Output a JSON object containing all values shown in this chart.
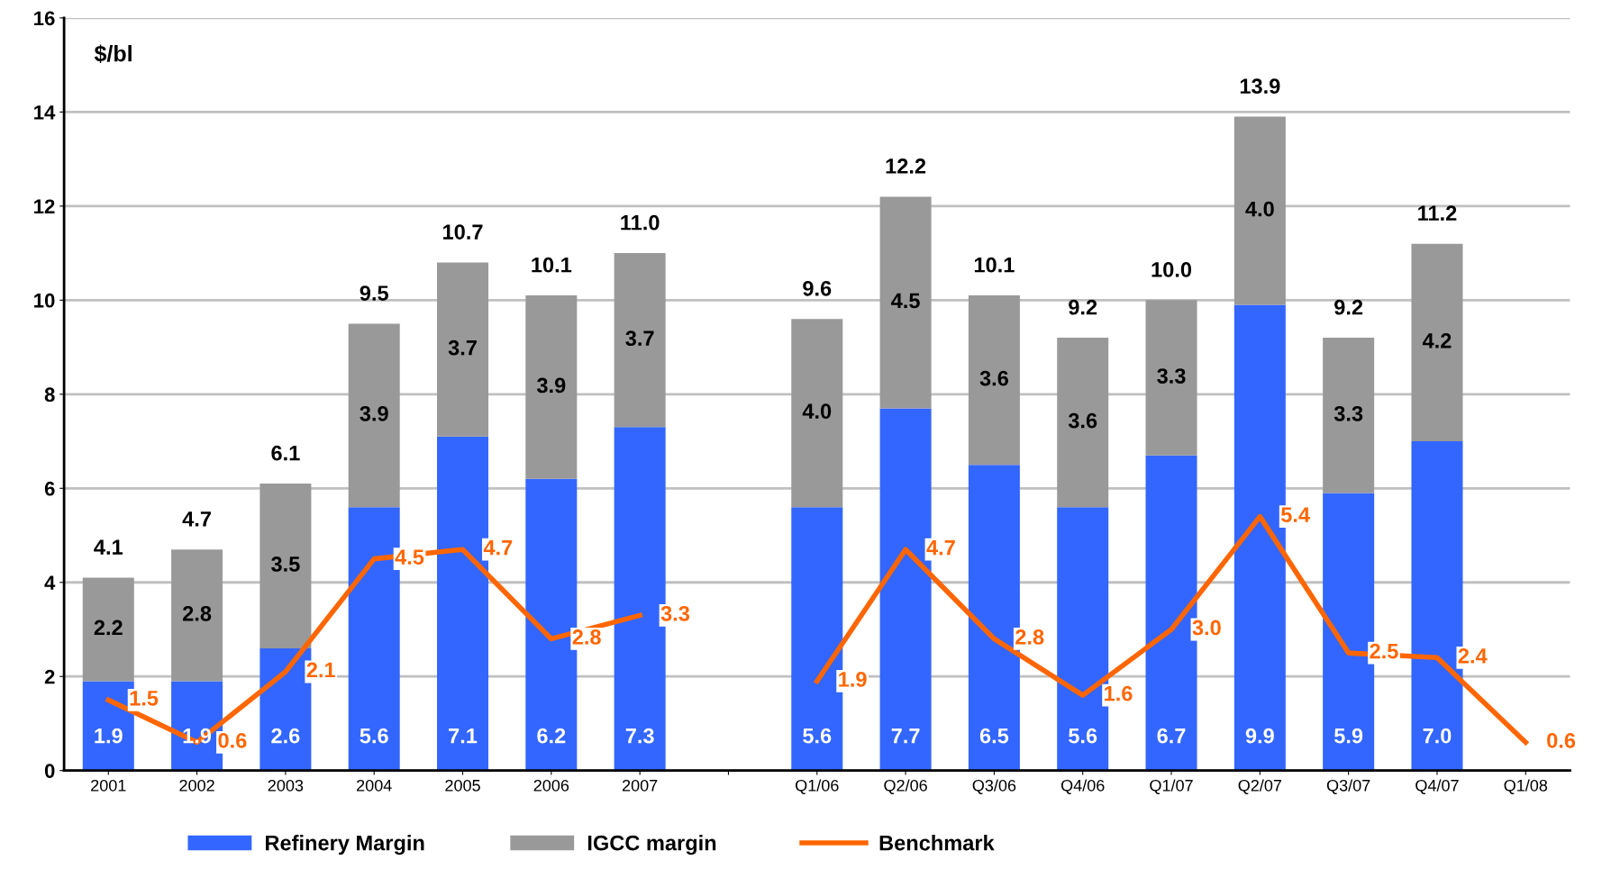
{
  "chart_data": {
    "type": "bar",
    "ylabel": "$/bl",
    "stacked": true,
    "grid": "y",
    "legend": "bottom",
    "categories": [
      "2001",
      "2002",
      "2003",
      "2004",
      "2005",
      "2006",
      "2007",
      null,
      "Q1/06",
      "Q2/06",
      "Q3/06",
      "Q4/06",
      "Q1/07",
      "Q2/07",
      "Q3/07",
      "Q4/07",
      "Q1/08"
    ],
    "ylim": [
      0,
      16
    ],
    "yticks": [
      0,
      2,
      4,
      6,
      8,
      10,
      12,
      14,
      16
    ],
    "series": [
      {
        "name": "Refinery Margin",
        "color": "#3366ff",
        "values": [
          1.9,
          1.9,
          2.6,
          5.6,
          7.1,
          6.2,
          7.3,
          null,
          5.6,
          7.7,
          6.5,
          5.6,
          6.7,
          9.9,
          5.9,
          7.0,
          null
        ],
        "value_labels": [
          "1.9",
          "1.9",
          "2.6",
          "5.6",
          "7.1",
          "6.2",
          "7.3",
          null,
          "5.6",
          "7.7",
          "6.5",
          "5.6",
          "6.7",
          "9.9",
          "5.9",
          "7.0",
          null
        ]
      },
      {
        "name": "IGCC margin",
        "color": "#999999",
        "values": [
          2.2,
          2.8,
          3.5,
          3.9,
          3.7,
          3.9,
          3.7,
          null,
          4.0,
          4.5,
          3.6,
          3.6,
          3.3,
          4.0,
          3.3,
          4.2,
          null
        ],
        "value_labels": [
          "2.2",
          "2.8",
          "3.5",
          "3.9",
          "3.7",
          "3.9",
          "3.7",
          null,
          "4.0",
          "4.5",
          "3.6",
          "3.6",
          "3.3",
          "4.0",
          "3.3",
          "4.2",
          null
        ]
      },
      {
        "name": "Benchmark",
        "type": "line",
        "color": "#ff6600",
        "values": [
          1.5,
          0.6,
          2.1,
          4.5,
          4.7,
          2.8,
          3.3,
          null,
          1.9,
          4.7,
          2.8,
          1.6,
          3.0,
          5.4,
          2.5,
          2.4,
          0.6
        ],
        "value_labels": [
          "1.5",
          "0.6",
          "2.1",
          "4.5",
          "4.7",
          "2.8",
          "3.3",
          null,
          "1.9",
          "4.7",
          "2.8",
          "1.6",
          "3.0",
          "5.4",
          "2.5",
          "2.4",
          "0.6"
        ]
      }
    ],
    "totals": [
      "4.1",
      "4.7",
      "6.1",
      "9.5",
      "10.7",
      "10.1",
      "11.0",
      null,
      "9.6",
      "12.2",
      "10.1",
      "9.2",
      "10.0",
      "13.9",
      "9.2",
      "11.2",
      null
    ]
  }
}
